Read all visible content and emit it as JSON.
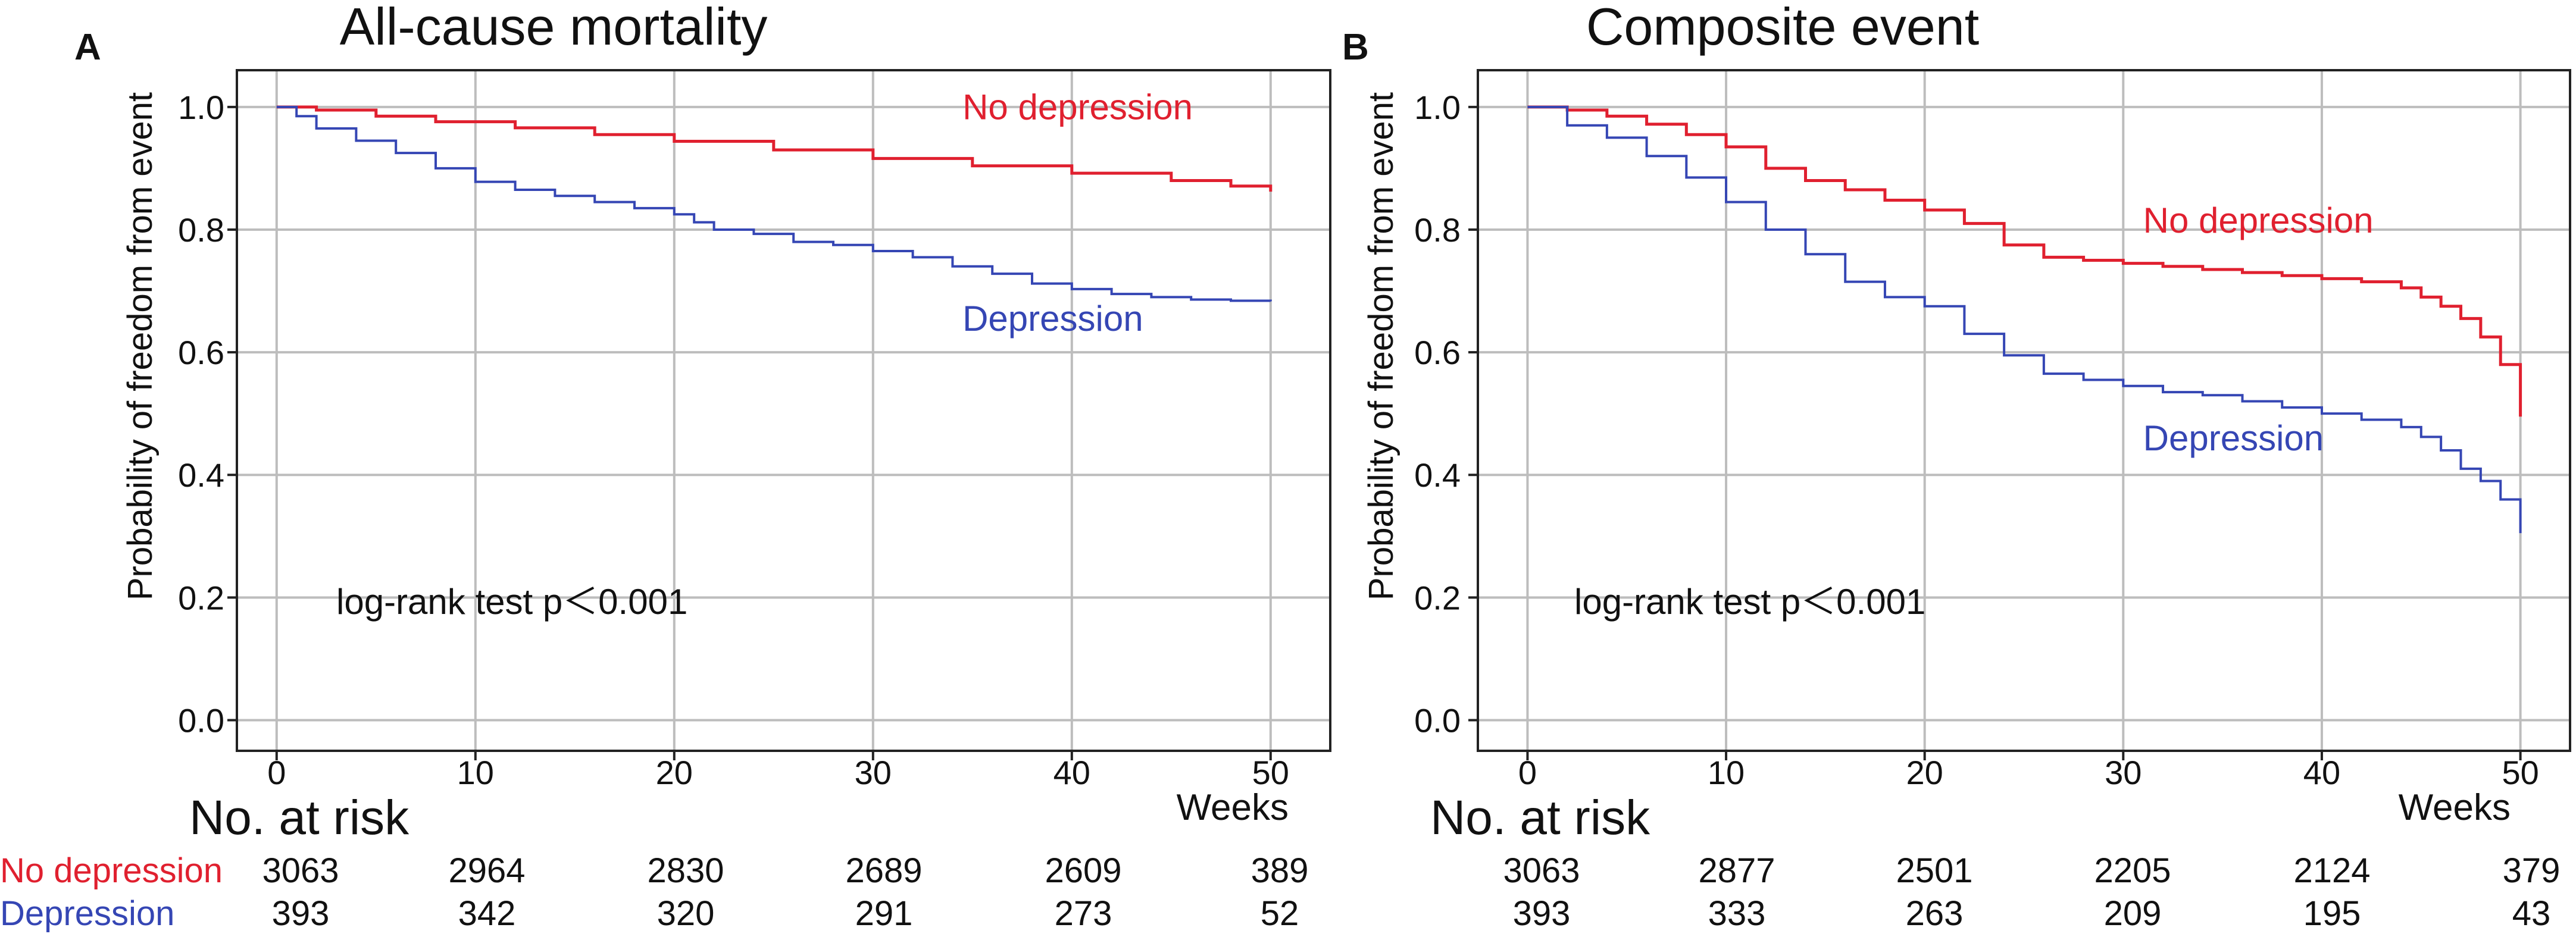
{
  "colors": {
    "no_depression": "#e0202f",
    "depression": "#3546b4",
    "grid": "#bdbdbd",
    "axis": "#222222",
    "text": "#111111"
  },
  "x_unit_label": "Weeks",
  "risk_table_title": "No. at risk",
  "group_labels": {
    "no_depression": "No depression",
    "depression": "Depression"
  },
  "chart_data": [
    {
      "type": "line",
      "panel": "A",
      "title": "All-cause mortality",
      "xlabel": "Weeks",
      "ylabel": "Probability of freedom from event",
      "xlim": [
        -2,
        53
      ],
      "ylim": [
        -0.05,
        1.06
      ],
      "xticks": [
        0,
        10,
        20,
        30,
        40,
        50
      ],
      "yticks": [
        0.0,
        0.2,
        0.4,
        0.6,
        0.8,
        1.0
      ],
      "ytick_labels": [
        "0.0",
        "0.2",
        "0.4",
        "0.6",
        "0.8",
        "1.0"
      ],
      "annotation": "log-rank test p＜0.001",
      "series": [
        {
          "name": "No depression",
          "label_text": "No depression",
          "label_pos": [
            34.5,
            0.98
          ],
          "x": [
            0,
            2,
            5,
            8,
            12,
            16,
            20,
            25,
            30,
            35,
            40,
            45,
            48,
            50
          ],
          "y": [
            1.0,
            0.995,
            0.985,
            0.976,
            0.966,
            0.955,
            0.944,
            0.93,
            0.916,
            0.904,
            0.892,
            0.88,
            0.871,
            0.862
          ]
        },
        {
          "name": "Depression",
          "label_text": "Depression",
          "label_pos": [
            34.5,
            0.635
          ],
          "x": [
            0,
            1,
            2,
            4,
            6,
            8,
            10,
            12,
            14,
            16,
            18,
            20,
            21,
            22,
            24,
            26,
            28,
            30,
            32,
            34,
            36,
            38,
            40,
            42,
            44,
            46,
            48,
            50
          ],
          "y": [
            1.0,
            0.985,
            0.965,
            0.945,
            0.925,
            0.9,
            0.878,
            0.865,
            0.855,
            0.845,
            0.835,
            0.825,
            0.812,
            0.8,
            0.793,
            0.78,
            0.775,
            0.765,
            0.755,
            0.74,
            0.728,
            0.712,
            0.703,
            0.695,
            0.69,
            0.686,
            0.684,
            0.683
          ]
        }
      ],
      "risk_table": {
        "times": [
          0,
          10,
          20,
          30,
          40,
          50
        ],
        "no_depression": [
          3063,
          2964,
          2830,
          2689,
          2609,
          389
        ],
        "depression": [
          393,
          342,
          320,
          291,
          273,
          52
        ]
      }
    },
    {
      "type": "line",
      "panel": "B",
      "title": "Composite event",
      "xlabel": "Weeks",
      "ylabel": "Probability of freedom from event",
      "xlim": [
        -2.5,
        52.5
      ],
      "ylim": [
        -0.05,
        1.06
      ],
      "xticks": [
        0,
        10,
        20,
        30,
        40,
        50
      ],
      "yticks": [
        0.0,
        0.2,
        0.4,
        0.6,
        0.8,
        1.0
      ],
      "ytick_labels": [
        "0.0",
        "0.2",
        "0.4",
        "0.6",
        "0.8",
        "1.0"
      ],
      "annotation": "log-rank test p＜0.001",
      "series": [
        {
          "name": "No depression",
          "label_text": "No depression",
          "label_pos": [
            31,
            0.795
          ],
          "x": [
            0,
            2,
            4,
            6,
            8,
            10,
            12,
            14,
            16,
            18,
            20,
            22,
            24,
            26,
            28,
            30,
            32,
            34,
            36,
            38,
            40,
            42,
            44,
            45,
            46,
            47,
            48,
            49,
            50
          ],
          "y": [
            1.0,
            0.995,
            0.985,
            0.972,
            0.955,
            0.935,
            0.9,
            0.88,
            0.865,
            0.848,
            0.832,
            0.81,
            0.775,
            0.755,
            0.75,
            0.745,
            0.74,
            0.735,
            0.73,
            0.725,
            0.72,
            0.715,
            0.705,
            0.69,
            0.675,
            0.655,
            0.625,
            0.58,
            0.495
          ]
        },
        {
          "name": "Depression",
          "label_text": "Depression",
          "label_pos": [
            31,
            0.44
          ],
          "x": [
            0,
            2,
            4,
            6,
            8,
            10,
            12,
            14,
            16,
            18,
            20,
            22,
            24,
            26,
            28,
            30,
            32,
            34,
            36,
            38,
            40,
            42,
            44,
            45,
            46,
            47,
            48,
            49,
            50
          ],
          "y": [
            1.0,
            0.97,
            0.95,
            0.92,
            0.885,
            0.845,
            0.8,
            0.76,
            0.715,
            0.69,
            0.675,
            0.63,
            0.595,
            0.565,
            0.555,
            0.545,
            0.535,
            0.53,
            0.52,
            0.51,
            0.5,
            0.49,
            0.478,
            0.462,
            0.44,
            0.41,
            0.39,
            0.36,
            0.305
          ]
        }
      ],
      "risk_table": {
        "times": [
          0,
          10,
          20,
          30,
          40,
          50
        ],
        "no_depression": [
          3063,
          2877,
          2501,
          2205,
          2124,
          379
        ],
        "depression": [
          393,
          333,
          263,
          209,
          195,
          43
        ]
      }
    }
  ]
}
